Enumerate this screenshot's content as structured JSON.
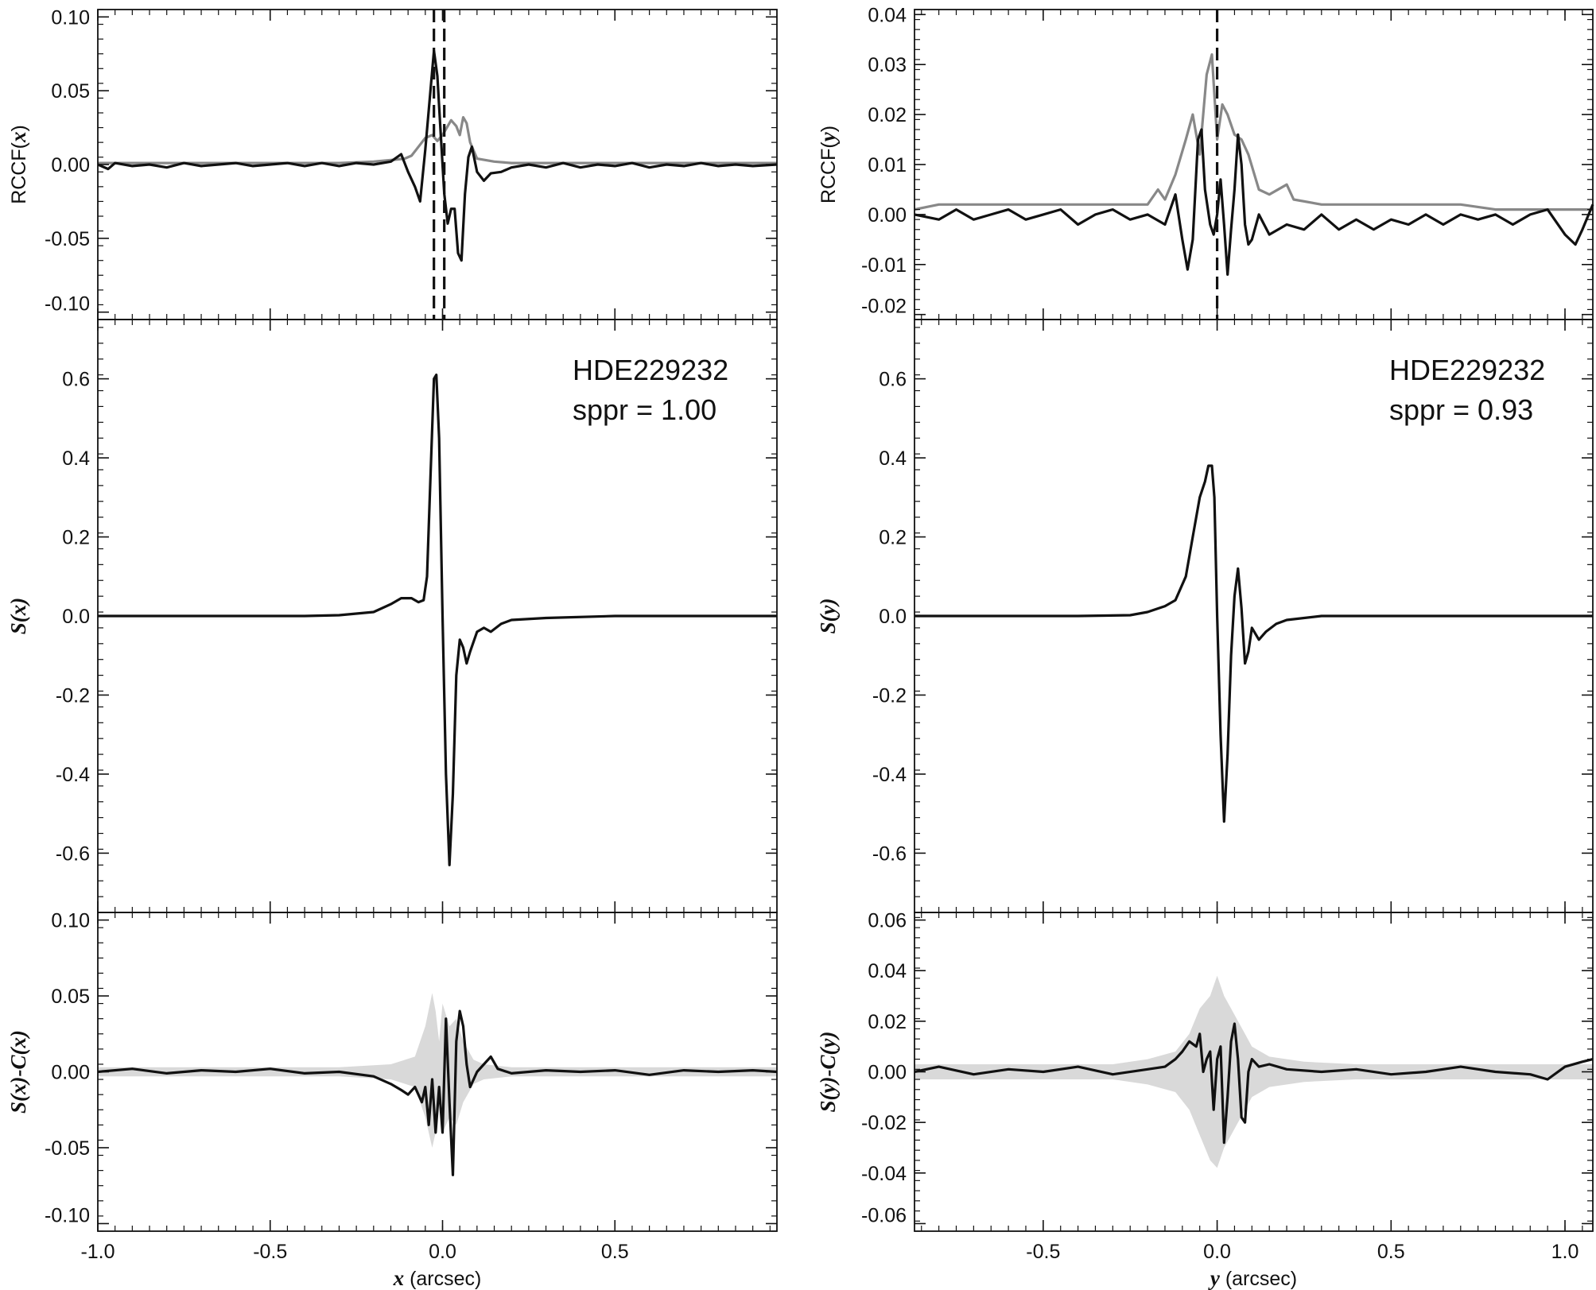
{
  "chart_data": [
    {
      "id": "left-top",
      "type": "line",
      "ylabel": "RCCF(x)",
      "xlim": [
        -1.0,
        0.97
      ],
      "ylim": [
        -0.105,
        0.105
      ],
      "yticks": [
        -0.1,
        -0.05,
        0.0,
        0.05,
        0.1
      ],
      "ytick_labels": [
        "-0.10",
        "-0.05",
        "0.00",
        "0.05",
        "0.10"
      ],
      "vlines": [
        -0.025,
        0.005
      ],
      "series": [
        {
          "color": "#888888",
          "x": [
            -1.0,
            -0.9,
            -0.8,
            -0.7,
            -0.6,
            -0.5,
            -0.4,
            -0.3,
            -0.2,
            -0.15,
            -0.11,
            -0.09,
            -0.07,
            -0.05,
            -0.03,
            -0.015,
            0.0,
            0.015,
            0.025,
            0.04,
            0.05,
            0.06,
            0.07,
            0.08,
            0.1,
            0.15,
            0.2,
            0.3,
            0.5,
            0.7,
            0.97
          ],
          "y": [
            0.001,
            0.001,
            0.001,
            0.001,
            0.001,
            0.001,
            0.001,
            0.001,
            0.002,
            0.003,
            0.004,
            0.006,
            0.012,
            0.018,
            0.02,
            0.016,
            0.02,
            0.026,
            0.03,
            0.026,
            0.02,
            0.032,
            0.028,
            0.015,
            0.004,
            0.002,
            0.001,
            0.001,
            0.001,
            0.001,
            0.001
          ]
        },
        {
          "color": "#111111",
          "x": [
            -1.0,
            -0.97,
            -0.95,
            -0.9,
            -0.85,
            -0.8,
            -0.75,
            -0.7,
            -0.65,
            -0.6,
            -0.55,
            -0.5,
            -0.45,
            -0.4,
            -0.35,
            -0.3,
            -0.25,
            -0.2,
            -0.15,
            -0.12,
            -0.1,
            -0.08,
            -0.065,
            -0.05,
            -0.035,
            -0.025,
            -0.015,
            -0.005,
            0.005,
            0.015,
            0.025,
            0.035,
            0.045,
            0.055,
            0.065,
            0.075,
            0.085,
            0.1,
            0.12,
            0.14,
            0.17,
            0.2,
            0.25,
            0.3,
            0.35,
            0.4,
            0.45,
            0.5,
            0.55,
            0.6,
            0.65,
            0.7,
            0.75,
            0.8,
            0.85,
            0.9,
            0.97
          ],
          "y": [
            0.0,
            -0.003,
            0.001,
            -0.001,
            0.0,
            -0.002,
            0.001,
            -0.001,
            0.0,
            0.001,
            -0.001,
            0.0,
            0.001,
            -0.001,
            0.001,
            -0.001,
            0.001,
            0.0,
            0.002,
            0.007,
            -0.005,
            -0.015,
            -0.025,
            0.01,
            0.05,
            0.077,
            0.06,
            0.02,
            -0.02,
            -0.04,
            -0.03,
            -0.03,
            -0.06,
            -0.065,
            -0.02,
            0.005,
            0.012,
            -0.005,
            -0.011,
            -0.006,
            -0.005,
            -0.002,
            0.0,
            -0.002,
            0.001,
            -0.002,
            0.0,
            -0.001,
            0.001,
            -0.002,
            0.0,
            -0.001,
            0.001,
            -0.001,
            0.0,
            -0.001,
            0.0
          ]
        }
      ]
    },
    {
      "id": "left-mid",
      "type": "line",
      "ylabel": "S(x)",
      "xlim": [
        -1.0,
        0.97
      ],
      "ylim": [
        -0.75,
        0.75
      ],
      "yticks": [
        -0.6,
        -0.4,
        -0.2,
        0.0,
        0.2,
        0.4,
        0.6
      ],
      "ytick_labels": [
        "-0.6",
        "-0.4",
        "-0.2",
        "0.0",
        "0.2",
        "0.4",
        "0.6"
      ],
      "annotation": [
        "HDE229232",
        "sppr = 1.00"
      ],
      "series": [
        {
          "color": "#111111",
          "x": [
            -1.0,
            -0.8,
            -0.6,
            -0.4,
            -0.3,
            -0.2,
            -0.15,
            -0.12,
            -0.09,
            -0.07,
            -0.055,
            -0.045,
            -0.035,
            -0.025,
            -0.018,
            -0.01,
            0.0,
            0.01,
            0.02,
            0.03,
            0.04,
            0.05,
            0.06,
            0.07,
            0.08,
            0.1,
            0.12,
            0.14,
            0.17,
            0.2,
            0.3,
            0.5,
            0.7,
            0.97
          ],
          "y": [
            0.0,
            0.0,
            0.0,
            0.0,
            0.002,
            0.01,
            0.03,
            0.045,
            0.045,
            0.035,
            0.04,
            0.1,
            0.35,
            0.6,
            0.61,
            0.45,
            0.0,
            -0.4,
            -0.63,
            -0.45,
            -0.15,
            -0.06,
            -0.08,
            -0.12,
            -0.09,
            -0.04,
            -0.03,
            -0.04,
            -0.02,
            -0.01,
            -0.005,
            0.0,
            0.0,
            0.0
          ]
        }
      ]
    },
    {
      "id": "left-bot",
      "type": "line",
      "ylabel": "S(x)-C(x)",
      "xlabel": "x (arcsec)",
      "xlim": [
        -1.0,
        0.97
      ],
      "ylim": [
        -0.105,
        0.105
      ],
      "yticks": [
        -0.1,
        -0.05,
        0.0,
        0.05,
        0.1
      ],
      "ytick_labels": [
        "-0.10",
        "-0.05",
        "0.00",
        "0.05",
        "0.10"
      ],
      "xticks": [
        -1.0,
        -0.5,
        0.0,
        0.5
      ],
      "xtick_labels": [
        "-1.0",
        "-0.5",
        "0.0",
        "0.5"
      ],
      "band": {
        "color": "#d9d9d9",
        "x": [
          -1.0,
          -0.3,
          -0.15,
          -0.08,
          -0.05,
          -0.03,
          -0.02,
          -0.01,
          0.0,
          0.02,
          0.04,
          0.06,
          0.09,
          0.12,
          0.2,
          0.4,
          0.97
        ],
        "upper": [
          0.003,
          0.003,
          0.005,
          0.01,
          0.03,
          0.052,
          0.04,
          0.02,
          0.045,
          0.03,
          0.035,
          0.02,
          0.008,
          0.005,
          0.003,
          0.003,
          0.003
        ],
        "lower": [
          -0.003,
          -0.003,
          -0.005,
          -0.01,
          -0.03,
          -0.05,
          -0.04,
          -0.02,
          -0.04,
          -0.03,
          -0.035,
          -0.02,
          -0.008,
          -0.005,
          -0.003,
          -0.003,
          -0.003
        ]
      },
      "series": [
        {
          "color": "#111111",
          "x": [
            -1.0,
            -0.9,
            -0.8,
            -0.7,
            -0.6,
            -0.5,
            -0.4,
            -0.3,
            -0.2,
            -0.15,
            -0.12,
            -0.1,
            -0.08,
            -0.06,
            -0.05,
            -0.04,
            -0.03,
            -0.02,
            -0.01,
            0.0,
            0.01,
            0.02,
            0.03,
            0.04,
            0.05,
            0.06,
            0.07,
            0.08,
            0.1,
            0.12,
            0.14,
            0.16,
            0.2,
            0.3,
            0.4,
            0.5,
            0.6,
            0.7,
            0.8,
            0.9,
            0.97
          ],
          "y": [
            0.0,
            0.002,
            -0.001,
            0.001,
            0.0,
            0.002,
            -0.001,
            0.0,
            -0.003,
            -0.008,
            -0.012,
            -0.015,
            -0.01,
            -0.02,
            -0.01,
            -0.035,
            -0.005,
            -0.04,
            -0.01,
            -0.04,
            0.035,
            -0.02,
            -0.068,
            0.02,
            0.04,
            0.03,
            0.005,
            -0.01,
            0.0,
            0.005,
            0.01,
            0.002,
            -0.001,
            0.001,
            0.0,
            0.001,
            -0.002,
            0.001,
            0.0,
            0.001,
            0.0
          ]
        }
      ]
    },
    {
      "id": "right-top",
      "type": "line",
      "ylabel": "RCCF(y)",
      "xlim": [
        -0.87,
        1.08
      ],
      "ylim": [
        -0.021,
        0.041
      ],
      "yticks": [
        -0.02,
        -0.01,
        0.0,
        0.01,
        0.02,
        0.03,
        0.04
      ],
      "ytick_labels": [
        "-0.02",
        "-0.01",
        "0.00",
        "0.01",
        "0.02",
        "0.03",
        "0.04"
      ],
      "vlines": [
        0.0
      ],
      "series": [
        {
          "color": "#888888",
          "x": [
            -0.87,
            -0.8,
            -0.7,
            -0.6,
            -0.5,
            -0.4,
            -0.3,
            -0.2,
            -0.17,
            -0.15,
            -0.12,
            -0.09,
            -0.07,
            -0.05,
            -0.03,
            -0.015,
            0.0,
            0.015,
            0.03,
            0.05,
            0.07,
            0.09,
            0.12,
            0.15,
            0.2,
            0.22,
            0.3,
            0.4,
            0.5,
            0.6,
            0.7,
            0.8,
            1.0,
            1.08
          ],
          "y": [
            0.001,
            0.002,
            0.002,
            0.002,
            0.002,
            0.002,
            0.002,
            0.002,
            0.005,
            0.003,
            0.008,
            0.015,
            0.02,
            0.012,
            0.028,
            0.032,
            0.015,
            0.022,
            0.02,
            0.016,
            0.015,
            0.012,
            0.005,
            0.004,
            0.006,
            0.003,
            0.002,
            0.002,
            0.002,
            0.002,
            0.002,
            0.001,
            0.001,
            0.001
          ]
        },
        {
          "color": "#111111",
          "x": [
            -0.87,
            -0.8,
            -0.75,
            -0.7,
            -0.65,
            -0.6,
            -0.55,
            -0.5,
            -0.45,
            -0.4,
            -0.35,
            -0.3,
            -0.25,
            -0.2,
            -0.15,
            -0.12,
            -0.1,
            -0.085,
            -0.07,
            -0.055,
            -0.045,
            -0.035,
            -0.02,
            -0.01,
            0.0,
            0.01,
            0.02,
            0.03,
            0.04,
            0.05,
            0.06,
            0.07,
            0.08,
            0.09,
            0.1,
            0.12,
            0.15,
            0.2,
            0.25,
            0.3,
            0.35,
            0.4,
            0.45,
            0.5,
            0.55,
            0.6,
            0.65,
            0.7,
            0.75,
            0.8,
            0.85,
            0.9,
            0.95,
            1.0,
            1.03,
            1.05,
            1.08
          ],
          "y": [
            0.0,
            -0.001,
            0.001,
            -0.001,
            0.0,
            0.001,
            -0.001,
            0.0,
            0.001,
            -0.002,
            0.0,
            0.001,
            -0.001,
            0.0,
            -0.002,
            0.004,
            -0.005,
            -0.011,
            -0.005,
            0.015,
            0.017,
            0.005,
            -0.002,
            -0.004,
            0.0,
            0.007,
            -0.002,
            -0.012,
            -0.003,
            0.005,
            0.016,
            0.01,
            -0.002,
            -0.006,
            -0.005,
            0.0,
            -0.004,
            -0.002,
            -0.003,
            0.0,
            -0.003,
            -0.001,
            -0.003,
            -0.001,
            -0.002,
            0.0,
            -0.002,
            0.0,
            -0.001,
            0.0,
            -0.002,
            0.0,
            0.001,
            -0.004,
            -0.006,
            -0.003,
            0.002
          ]
        }
      ]
    },
    {
      "id": "right-mid",
      "type": "line",
      "ylabel": "S(y)",
      "xlim": [
        -0.87,
        1.08
      ],
      "ylim": [
        -0.75,
        0.75
      ],
      "yticks": [
        -0.6,
        -0.4,
        -0.2,
        0.0,
        0.2,
        0.4,
        0.6
      ],
      "ytick_labels": [
        "-0.6",
        "-0.4",
        "-0.2",
        "0.0",
        "0.2",
        "0.4",
        "0.6"
      ],
      "annotation": [
        "HDE229232",
        "sppr = 0.93"
      ],
      "series": [
        {
          "color": "#111111",
          "x": [
            -0.87,
            -0.6,
            -0.4,
            -0.25,
            -0.2,
            -0.15,
            -0.12,
            -0.09,
            -0.07,
            -0.05,
            -0.035,
            -0.025,
            -0.015,
            -0.008,
            0.0,
            0.01,
            0.02,
            0.03,
            0.04,
            0.05,
            0.06,
            0.07,
            0.08,
            0.09,
            0.1,
            0.12,
            0.14,
            0.17,
            0.2,
            0.3,
            0.5,
            0.7,
            1.08
          ],
          "y": [
            0.0,
            0.0,
            0.0,
            0.002,
            0.01,
            0.025,
            0.04,
            0.1,
            0.2,
            0.3,
            0.34,
            0.38,
            0.38,
            0.3,
            0.0,
            -0.3,
            -0.52,
            -0.35,
            -0.1,
            0.05,
            0.12,
            0.02,
            -0.12,
            -0.09,
            -0.03,
            -0.06,
            -0.04,
            -0.02,
            -0.01,
            0.0,
            0.0,
            0.0,
            0.0
          ]
        }
      ]
    },
    {
      "id": "right-bot",
      "type": "line",
      "ylabel": "S(y)-C(y)",
      "xlabel": "y (arcsec)",
      "xlim": [
        -0.87,
        1.08
      ],
      "ylim": [
        -0.063,
        0.063
      ],
      "yticks": [
        -0.06,
        -0.04,
        -0.02,
        0.0,
        0.02,
        0.04,
        0.06
      ],
      "ytick_labels": [
        "-0.06",
        "-0.04",
        "-0.02",
        "0.00",
        "0.02",
        "0.04",
        "0.06"
      ],
      "xticks": [
        -0.5,
        0.0,
        0.5,
        1.0
      ],
      "xtick_labels": [
        "-0.5",
        "0.0",
        "0.5",
        "1.0"
      ],
      "band": {
        "color": "#d9d9d9",
        "x": [
          -0.87,
          -0.3,
          -0.2,
          -0.12,
          -0.08,
          -0.05,
          -0.02,
          0.0,
          0.02,
          0.04,
          0.06,
          0.08,
          0.1,
          0.15,
          0.25,
          0.4,
          1.08
        ],
        "upper": [
          0.003,
          0.003,
          0.005,
          0.008,
          0.015,
          0.025,
          0.03,
          0.038,
          0.03,
          0.025,
          0.02,
          0.015,
          0.01,
          0.006,
          0.004,
          0.003,
          0.003
        ],
        "lower": [
          -0.003,
          -0.003,
          -0.005,
          -0.008,
          -0.015,
          -0.025,
          -0.035,
          -0.038,
          -0.03,
          -0.025,
          -0.02,
          -0.015,
          -0.01,
          -0.006,
          -0.004,
          -0.003,
          -0.003
        ]
      },
      "series": [
        {
          "color": "#111111",
          "x": [
            -0.87,
            -0.8,
            -0.7,
            -0.6,
            -0.5,
            -0.4,
            -0.3,
            -0.2,
            -0.15,
            -0.12,
            -0.1,
            -0.08,
            -0.06,
            -0.05,
            -0.04,
            -0.03,
            -0.02,
            -0.01,
            0.0,
            0.01,
            0.02,
            0.03,
            0.04,
            0.05,
            0.06,
            0.07,
            0.08,
            0.09,
            0.1,
            0.12,
            0.15,
            0.2,
            0.3,
            0.4,
            0.5,
            0.6,
            0.7,
            0.8,
            0.9,
            0.95,
            1.0,
            1.05,
            1.08
          ],
          "y": [
            0.0,
            0.002,
            -0.001,
            0.001,
            0.0,
            0.002,
            -0.001,
            0.001,
            0.002,
            0.005,
            0.008,
            0.012,
            0.01,
            0.015,
            0.0,
            0.005,
            0.008,
            -0.015,
            0.005,
            0.01,
            -0.028,
            -0.01,
            0.012,
            0.019,
            0.005,
            -0.018,
            -0.02,
            0.0,
            0.005,
            0.002,
            0.003,
            0.001,
            0.0,
            0.001,
            -0.001,
            0.0,
            0.002,
            0.0,
            -0.001,
            -0.003,
            0.002,
            0.004,
            0.005
          ]
        }
      ]
    }
  ]
}
